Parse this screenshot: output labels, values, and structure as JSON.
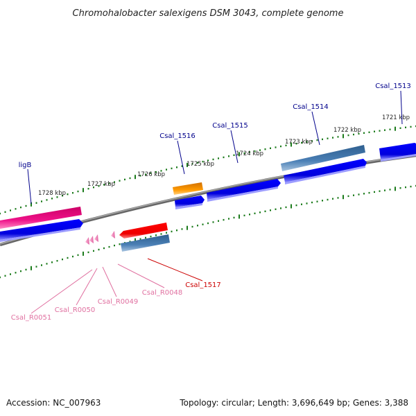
{
  "title": "Chromohalobacter salexigens DSM 3043, complete genome",
  "colors": {
    "backbone": "#808080",
    "tick": "#1a7a1a",
    "cds": "#0000ee",
    "cds_alt": "#4a7fb5",
    "cds_orange": "#ff9a00",
    "cds_red": "#ee0000",
    "cds_magenta": "#ee1188",
    "rna_pink": "#ee88bb",
    "label_blue": "#00008b",
    "label_red": "#cc0000",
    "label_pink": "#e070a0"
  },
  "kbp_labels": [
    "1721 kbp",
    "1722 kbp",
    "1723 kbp",
    "1724 kbp",
    "1725 kbp",
    "1726 kbp",
    "1727 kbp",
    "1728 kbp"
  ],
  "gene_labels": {
    "csal_1513": "Csal_1513",
    "csal_1514": "Csal_1514",
    "csal_1515": "Csal_1515",
    "csal_1516": "Csal_1516",
    "ligb": "ligB",
    "csal_1517": "Csal_1517",
    "csal_r0048": "Csal_R0048",
    "csal_r0049": "Csal_R0049",
    "csal_r0050": "Csal_R0050",
    "csal_r0051": "Csal_R0051"
  },
  "footer": {
    "accession": "Accession: NC_007963",
    "topology": "Topology: circular; Length: 3,696,649 bp; Genes: 3,388"
  }
}
